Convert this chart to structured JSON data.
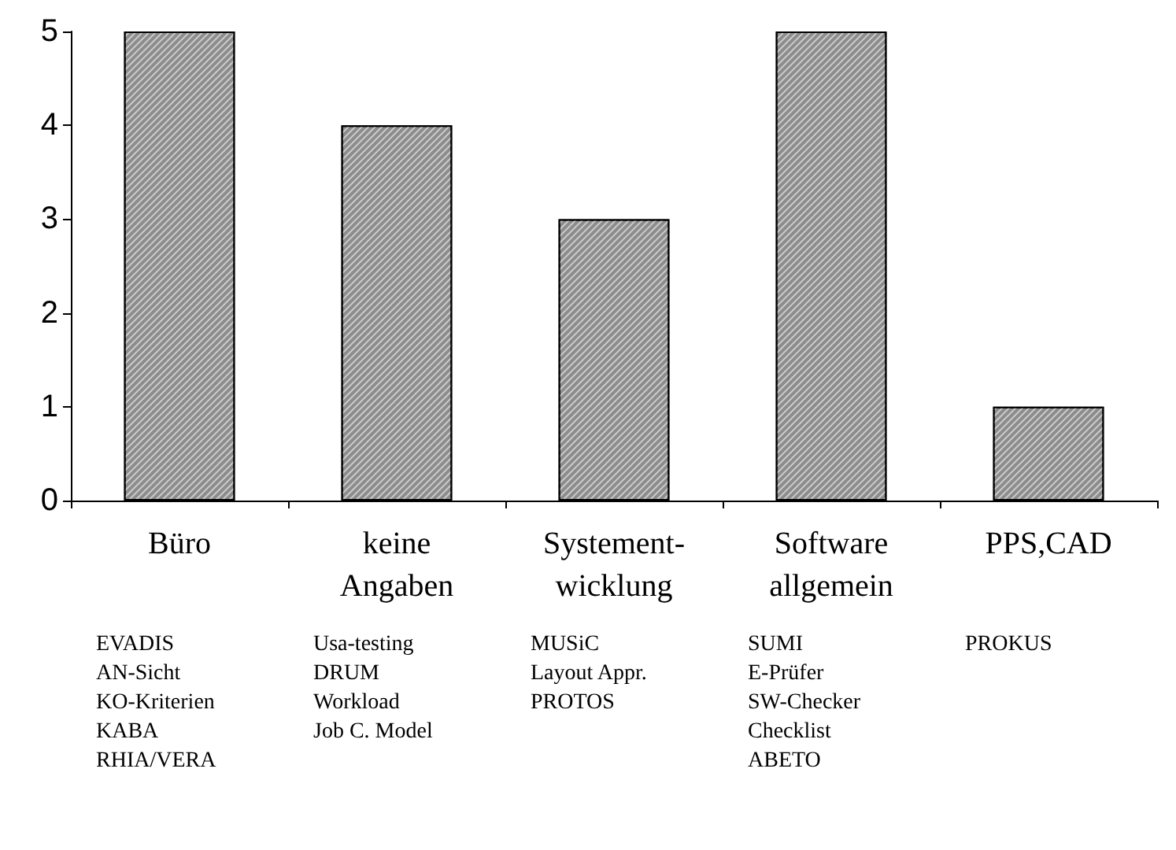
{
  "chart_data": {
    "type": "bar",
    "categories": [
      "Büro",
      "keine\nAngaben",
      "Systement-\nwicklung",
      "Software\nallgemein",
      "PPS,CAD"
    ],
    "values": [
      5,
      4,
      3,
      5,
      1
    ],
    "color": "#8c8c8c",
    "ylim": [
      0,
      5
    ],
    "yticks": [
      0,
      1,
      2,
      3,
      4,
      5
    ],
    "grid": false,
    "annotations": [
      "EVADIS\nAN-Sicht\nKO-Kriterien\nKABA\nRHIA/VERA",
      "Usa-testing\nDRUM\nWorkload\nJob C. Model",
      "MUSiC\nLayout Appr.\nPROTOS",
      "SUMI\nE-Prüfer\nSW-Checker\nChecklist\nABETO",
      "PROKUS"
    ]
  }
}
